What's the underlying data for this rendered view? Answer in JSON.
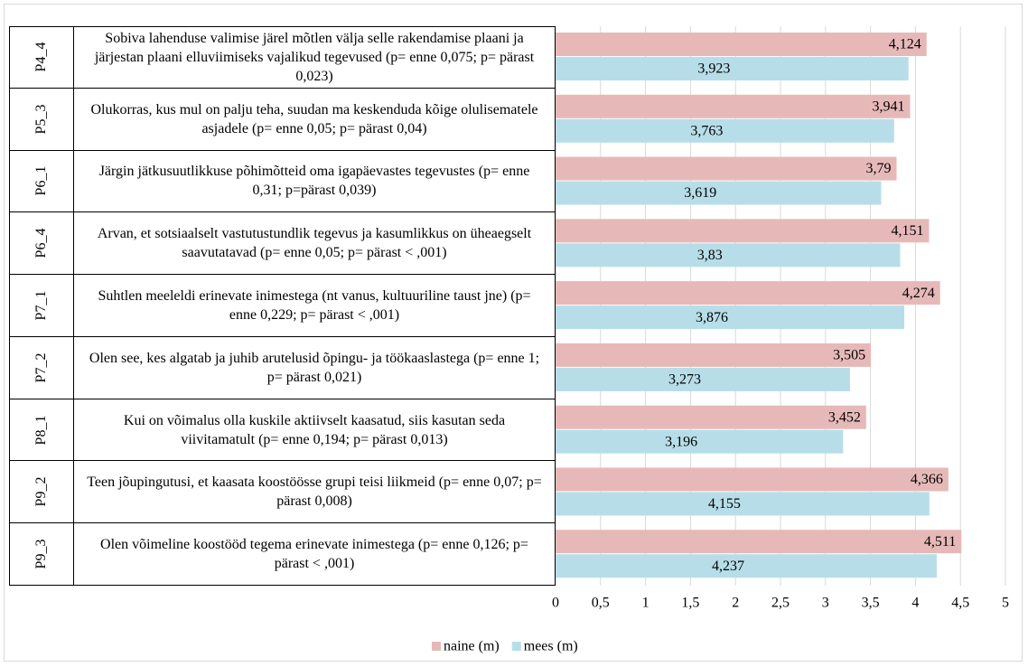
{
  "chart_data": {
    "type": "bar",
    "orientation": "horizontal",
    "codes": [
      "P4_4",
      "P5_3",
      "P6_1",
      "P6_4",
      "P7_1",
      "P7_2",
      "P8_1",
      "P9_2",
      "P9_3"
    ],
    "categories": [
      "Sobiva lahenduse valimise järel mõtlen välja selle rakendamise plaani ja järjestan plaani elluviimiseks vajalikud tegevused  (p= enne 0,075; p= pärast 0,023)",
      "Olukorras, kus mul on palju teha, suudan ma keskenduda kõige olulisematele asjadele  (p= enne 0,05; p= pärast 0,04)",
      "Järgin jätkusuutlikkuse põhimõtteid oma igapäevastes tegevustes (p= enne 0,31; p=pärast 0,039)",
      "Arvan, et sotsiaalselt vastutustundlik tegevus ja kasumlikkus on üheaegselt saavutatavad  (p= enne 0,05; p= pärast < ,001)",
      "Suhtlen meeleldi erinevate inimestega (nt vanus, kultuuriline taust jne)  (p= enne 0,229; p= pärast < ,001)",
      "Olen see, kes algatab ja juhib arutelusid õpingu- ja töökaaslastega (p= enne 1; p= pärast 0,021)",
      "Kui on võimalus olla kuskile aktiivselt kaasatud, siis kasutan seda viivitamatult  (p= enne 0,194; p= pärast 0,013)",
      "Teen jõupingutusi, et kaasata koostöösse grupi teisi liikmeid  (p= enne 0,07; p= pärast 0,008)",
      "Olen võimeline koostööd tegema erinevate inimestega  (p= enne 0,126; p= pärast < ,001)"
    ],
    "series": [
      {
        "name": "naine (m)",
        "color": "#e6b9b8",
        "values": [
          4.124,
          3.941,
          3.79,
          4.151,
          4.274,
          3.505,
          3.452,
          4.366,
          4.511
        ],
        "value_labels": [
          "4,124",
          "3,941",
          "3,79",
          "4,151",
          "4,274",
          "3,505",
          "3,452",
          "4,366",
          "4,511"
        ]
      },
      {
        "name": "mees (m)",
        "color": "#b7dee8",
        "values": [
          3.923,
          3.763,
          3.619,
          3.83,
          3.876,
          3.273,
          3.196,
          4.155,
          4.237
        ],
        "value_labels": [
          "3,923",
          "3,763",
          "3,619",
          "3,83",
          "3,876",
          "3,273",
          "3,196",
          "4,155",
          "4,237"
        ]
      }
    ],
    "xlim": [
      0,
      5
    ],
    "xticks": [
      0,
      {
        "value": 0.5,
        "label": "0,5"
      },
      1,
      {
        "value": 1.5,
        "label": "1,5"
      },
      2,
      {
        "value": 2.5,
        "label": "2,5"
      },
      3,
      {
        "value": 3.5,
        "label": "3,5"
      },
      4,
      {
        "value": 4.5,
        "label": "4,5"
      },
      5
    ],
    "grid": true,
    "legend": "bottom"
  }
}
